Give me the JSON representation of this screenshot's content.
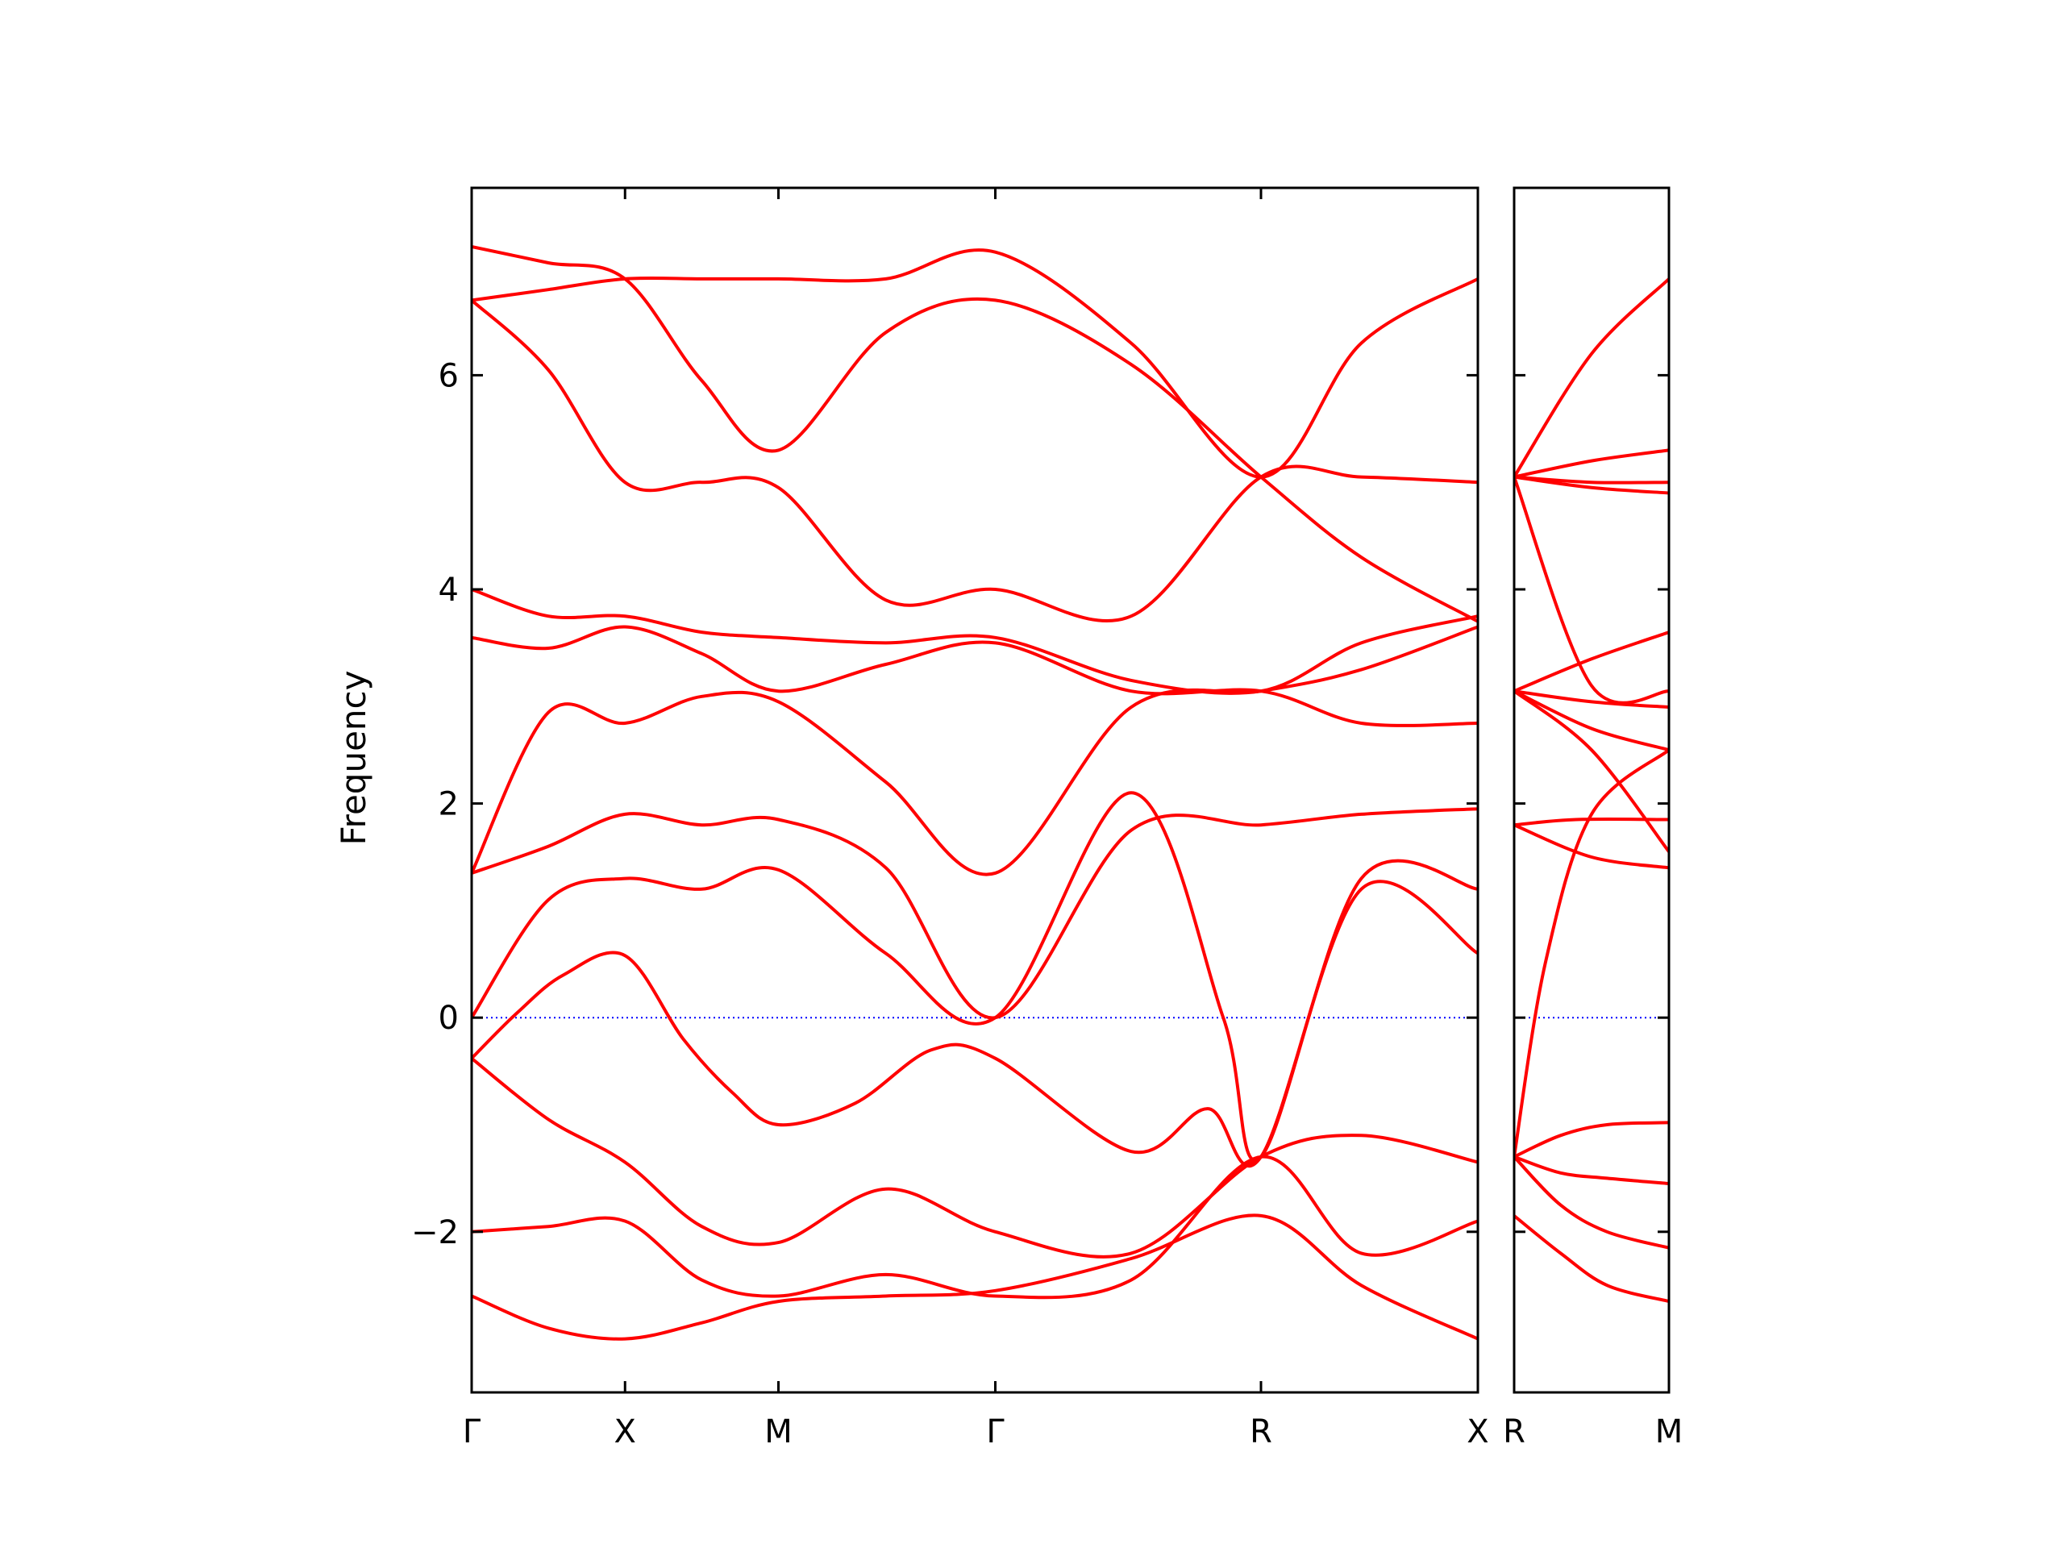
{
  "chart_data": {
    "type": "line",
    "title": "",
    "xlabel": "",
    "ylabel": "Frequency",
    "ylim": [
      -3.5,
      7.75
    ],
    "yticks": [
      -2,
      0,
      2,
      4,
      6
    ],
    "yticklabels": [
      "−2",
      "0",
      "2",
      "4",
      "6"
    ],
    "grid": false,
    "legend": "none",
    "colors": {
      "band": "#ff0000",
      "zero_line": "#0000ff",
      "axes": "#000000"
    },
    "panels": [
      {
        "name": "panel-main",
        "path": [
          "Γ",
          "X",
          "M",
          "Γ",
          "R",
          "X"
        ],
        "high_symmetry_x": [
          0,
          1,
          2,
          3.414,
          5.146,
          6.56
        ],
        "xlim": [
          0,
          6.56
        ],
        "bands": [
          {
            "name": "band-1",
            "points": [
              [
                0,
                -2.6
              ],
              [
                0.5,
                -2.9
              ],
              [
                1,
                -3.0
              ],
              [
                1.5,
                -2.85
              ],
              [
                2,
                -2.65
              ],
              [
                2.7,
                -2.6
              ],
              [
                3.414,
                -2.55
              ],
              [
                4.3,
                -2.25
              ],
              [
                5.146,
                -1.85
              ],
              [
                5.8,
                -2.5
              ],
              [
                6.56,
                -3.0
              ]
            ]
          },
          {
            "name": "band-2",
            "points": [
              [
                0,
                -2.0
              ],
              [
                0.5,
                -1.95
              ],
              [
                1,
                -1.9
              ],
              [
                1.5,
                -2.45
              ],
              [
                2,
                -2.6
              ],
              [
                2.7,
                -2.4
              ],
              [
                3.414,
                -2.6
              ],
              [
                4.3,
                -2.45
              ],
              [
                5.146,
                -1.3
              ],
              [
                5.8,
                -2.2
              ],
              [
                6.56,
                -1.9
              ]
            ]
          },
          {
            "name": "band-3",
            "points": [
              [
                0,
                -0.38
              ],
              [
                0.5,
                -0.95
              ],
              [
                1,
                -1.35
              ],
              [
                1.5,
                -1.95
              ],
              [
                2,
                -2.1
              ],
              [
                2.7,
                -1.6
              ],
              [
                3.414,
                -2.0
              ],
              [
                4.3,
                -2.2
              ],
              [
                5.146,
                -1.3
              ],
              [
                5.8,
                -1.1
              ],
              [
                6.56,
                -1.35
              ]
            ]
          },
          {
            "name": "band-4",
            "points": [
              [
                0,
                -0.38
              ],
              [
                0.3,
                0.05
              ],
              [
                0.6,
                0.4
              ],
              [
                1,
                0.58
              ],
              [
                1.38,
                -0.2
              ],
              [
                1.7,
                -0.7
              ],
              [
                2,
                -1.0
              ],
              [
                2.5,
                -0.8
              ],
              [
                3.0,
                -0.3
              ],
              [
                3.414,
                -0.38
              ],
              [
                4.3,
                -1.25
              ],
              [
                4.8,
                -0.85
              ],
              [
                5.146,
                -1.3
              ],
              [
                5.8,
                1.2
              ],
              [
                6.56,
                0.6
              ]
            ]
          },
          {
            "name": "band-5",
            "points": [
              [
                0,
                0.0
              ],
              [
                0.5,
                1.1
              ],
              [
                1,
                1.3
              ],
              [
                1.5,
                1.2
              ],
              [
                2,
                1.38
              ],
              [
                2.7,
                0.6
              ],
              [
                3.414,
                0.0
              ],
              [
                4.3,
                2.1
              ],
              [
                4.9,
                0.0
              ],
              [
                5.146,
                -1.3
              ],
              [
                5.8,
                1.3
              ],
              [
                6.56,
                1.2
              ]
            ]
          },
          {
            "name": "band-6",
            "points": [
              [
                0,
                1.35
              ],
              [
                0.5,
                1.6
              ],
              [
                1,
                1.9
              ],
              [
                1.5,
                1.8
              ],
              [
                2,
                1.85
              ],
              [
                2.7,
                1.4
              ],
              [
                3.414,
                0.0
              ],
              [
                4.3,
                1.75
              ],
              [
                5.146,
                1.8
              ],
              [
                5.8,
                1.9
              ],
              [
                6.56,
                1.95
              ]
            ]
          },
          {
            "name": "band-7",
            "points": [
              [
                0,
                1.35
              ],
              [
                0.5,
                2.85
              ],
              [
                1,
                2.75
              ],
              [
                1.5,
                3.0
              ],
              [
                2,
                2.95
              ],
              [
                2.7,
                2.2
              ],
              [
                3.414,
                1.35
              ],
              [
                4.3,
                2.9
              ],
              [
                5.146,
                3.05
              ],
              [
                5.8,
                3.25
              ],
              [
                6.56,
                3.65
              ]
            ]
          },
          {
            "name": "band-8",
            "points": [
              [
                0,
                3.55
              ],
              [
                0.5,
                3.45
              ],
              [
                1,
                3.65
              ],
              [
                1.5,
                3.4
              ],
              [
                2,
                3.05
              ],
              [
                2.7,
                3.3
              ],
              [
                3.414,
                3.5
              ],
              [
                4.3,
                3.05
              ],
              [
                5.146,
                3.05
              ],
              [
                5.8,
                2.75
              ],
              [
                6.56,
                2.75
              ]
            ]
          },
          {
            "name": "band-9",
            "points": [
              [
                0,
                4.0
              ],
              [
                0.5,
                3.75
              ],
              [
                1,
                3.75
              ],
              [
                1.5,
                3.6
              ],
              [
                2,
                3.55
              ],
              [
                2.7,
                3.5
              ],
              [
                3.414,
                3.55
              ],
              [
                4.3,
                3.15
              ],
              [
                5.146,
                3.05
              ],
              [
                5.8,
                3.5
              ],
              [
                6.56,
                3.75
              ]
            ]
          },
          {
            "name": "band-10",
            "points": [
              [
                0,
                6.7
              ],
              [
                0.5,
                6.05
              ],
              [
                1,
                5.0
              ],
              [
                1.5,
                5.0
              ],
              [
                2,
                4.95
              ],
              [
                2.7,
                3.9
              ],
              [
                3.414,
                4.0
              ],
              [
                4.3,
                3.75
              ],
              [
                5.146,
                5.05
              ],
              [
                5.8,
                5.05
              ],
              [
                6.56,
                5.0
              ]
            ]
          },
          {
            "name": "band-11",
            "points": [
              [
                0,
                6.7
              ],
              [
                0.5,
                6.8
              ],
              [
                1,
                6.9
              ],
              [
                1.5,
                6.9
              ],
              [
                2,
                6.9
              ],
              [
                2.7,
                6.9
              ],
              [
                3.414,
                7.15
              ],
              [
                4.3,
                6.3
              ],
              [
                5.146,
                5.05
              ],
              [
                5.8,
                6.3
              ],
              [
                6.56,
                6.9
              ]
            ]
          },
          {
            "name": "band-12",
            "points": [
              [
                0,
                7.2
              ],
              [
                0.5,
                7.05
              ],
              [
                1,
                6.9
              ],
              [
                1.5,
                5.95
              ],
              [
                2,
                5.3
              ],
              [
                2.7,
                6.4
              ],
              [
                3.414,
                6.7
              ],
              [
                4.3,
                6.1
              ],
              [
                5.146,
                5.05
              ],
              [
                5.8,
                4.3
              ],
              [
                6.56,
                3.7
              ]
            ]
          }
        ]
      },
      {
        "name": "panel-right",
        "path": [
          "R",
          "M"
        ],
        "high_symmetry_x": [
          0,
          1
        ],
        "xlim": [
          0,
          1
        ],
        "bands": [
          {
            "name": "band-1",
            "points": [
              [
                0,
                -1.85
              ],
              [
                0.3,
                -2.2
              ],
              [
                0.6,
                -2.5
              ],
              [
                1,
                -2.65
              ]
            ]
          },
          {
            "name": "band-2",
            "points": [
              [
                0,
                -1.3
              ],
              [
                0.3,
                -1.75
              ],
              [
                0.6,
                -2.0
              ],
              [
                1,
                -2.15
              ]
            ]
          },
          {
            "name": "band-3",
            "points": [
              [
                0,
                -1.3
              ],
              [
                0.3,
                -1.45
              ],
              [
                0.6,
                -1.5
              ],
              [
                1,
                -1.55
              ]
            ]
          },
          {
            "name": "band-4",
            "points": [
              [
                0,
                -1.3
              ],
              [
                0.3,
                -1.1
              ],
              [
                0.6,
                -1.0
              ],
              [
                1,
                -0.98
              ]
            ]
          },
          {
            "name": "band-5",
            "points": [
              [
                0,
                -1.3
              ],
              [
                0.2,
                0.5
              ],
              [
                0.5,
                1.9
              ],
              [
                1,
                2.5
              ]
            ]
          },
          {
            "name": "band-6",
            "points": [
              [
                0,
                1.8
              ],
              [
                0.4,
                1.85
              ],
              [
                1,
                1.85
              ]
            ]
          },
          {
            "name": "band-7",
            "points": [
              [
                0,
                1.8
              ],
              [
                0.5,
                1.5
              ],
              [
                1,
                1.4
              ]
            ]
          },
          {
            "name": "band-8",
            "points": [
              [
                0,
                3.05
              ],
              [
                0.5,
                2.5
              ],
              [
                1,
                1.55
              ]
            ]
          },
          {
            "name": "band-9",
            "points": [
              [
                0,
                3.05
              ],
              [
                0.5,
                2.7
              ],
              [
                1,
                2.5
              ]
            ]
          },
          {
            "name": "band-10",
            "points": [
              [
                0,
                3.05
              ],
              [
                0.5,
                2.95
              ],
              [
                1,
                2.9
              ]
            ]
          },
          {
            "name": "band-11",
            "points": [
              [
                0,
                3.05
              ],
              [
                0.5,
                3.35
              ],
              [
                1,
                3.6
              ]
            ]
          },
          {
            "name": "band-12",
            "points": [
              [
                0,
                5.05
              ],
              [
                0.5,
                3.1
              ],
              [
                1,
                3.05
              ]
            ]
          },
          {
            "name": "band-13",
            "points": [
              [
                0,
                5.05
              ],
              [
                0.5,
                4.95
              ],
              [
                1,
                4.9
              ]
            ]
          },
          {
            "name": "band-14",
            "points": [
              [
                0,
                5.05
              ],
              [
                0.5,
                5.0
              ],
              [
                1,
                5.0
              ]
            ]
          },
          {
            "name": "band-15",
            "points": [
              [
                0,
                5.05
              ],
              [
                0.5,
                5.2
              ],
              [
                1,
                5.3
              ]
            ]
          },
          {
            "name": "band-16",
            "points": [
              [
                0,
                5.05
              ],
              [
                0.5,
                6.2
              ],
              [
                1,
                6.9
              ]
            ]
          }
        ]
      }
    ]
  }
}
